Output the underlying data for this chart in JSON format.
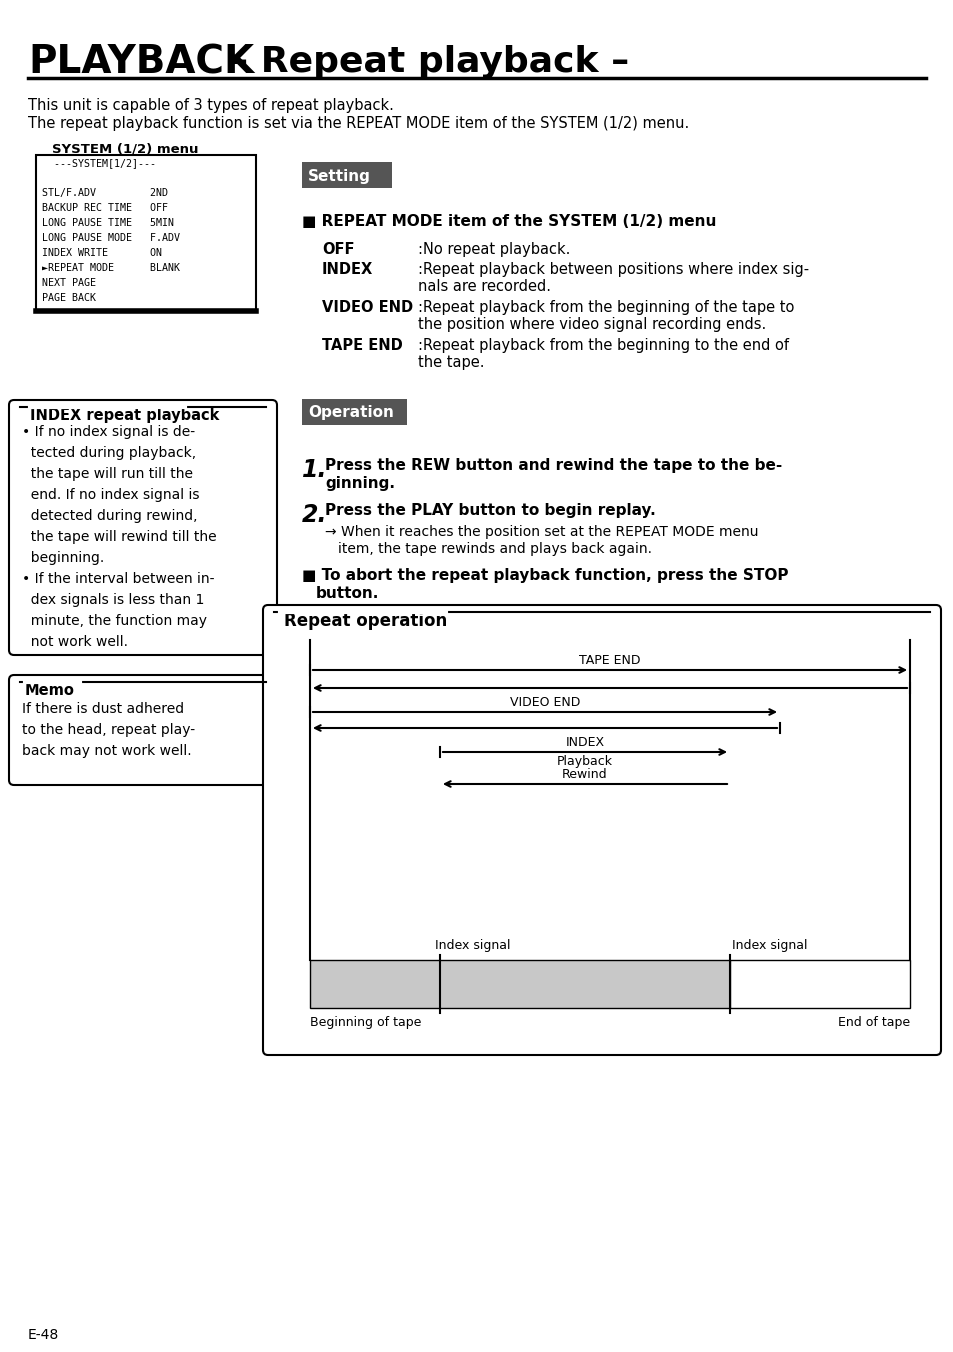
{
  "title_bold": "PLAYBACK",
  "title_normal": "– Repeat playback –",
  "bg_color": "#ffffff",
  "page_number": "E-48",
  "intro_line1": "This unit is capable of 3 types of repeat playback.",
  "intro_line2": "The repeat playback function is set via the REPEAT MODE item of the SYSTEM (1/2) menu.",
  "system_menu_label": "SYSTEM (1/2) menu",
  "setting_label": "Setting",
  "setting_bg": "#555555",
  "repeat_mode_header": "■ REPEAT MODE item of the SYSTEM (1/2) menu",
  "operation_label": "Operation",
  "operation_bg": "#555555",
  "index_box_title": "INDEX repeat playback",
  "memo_title": "Memo",
  "repeat_op_title": "Repeat operation"
}
